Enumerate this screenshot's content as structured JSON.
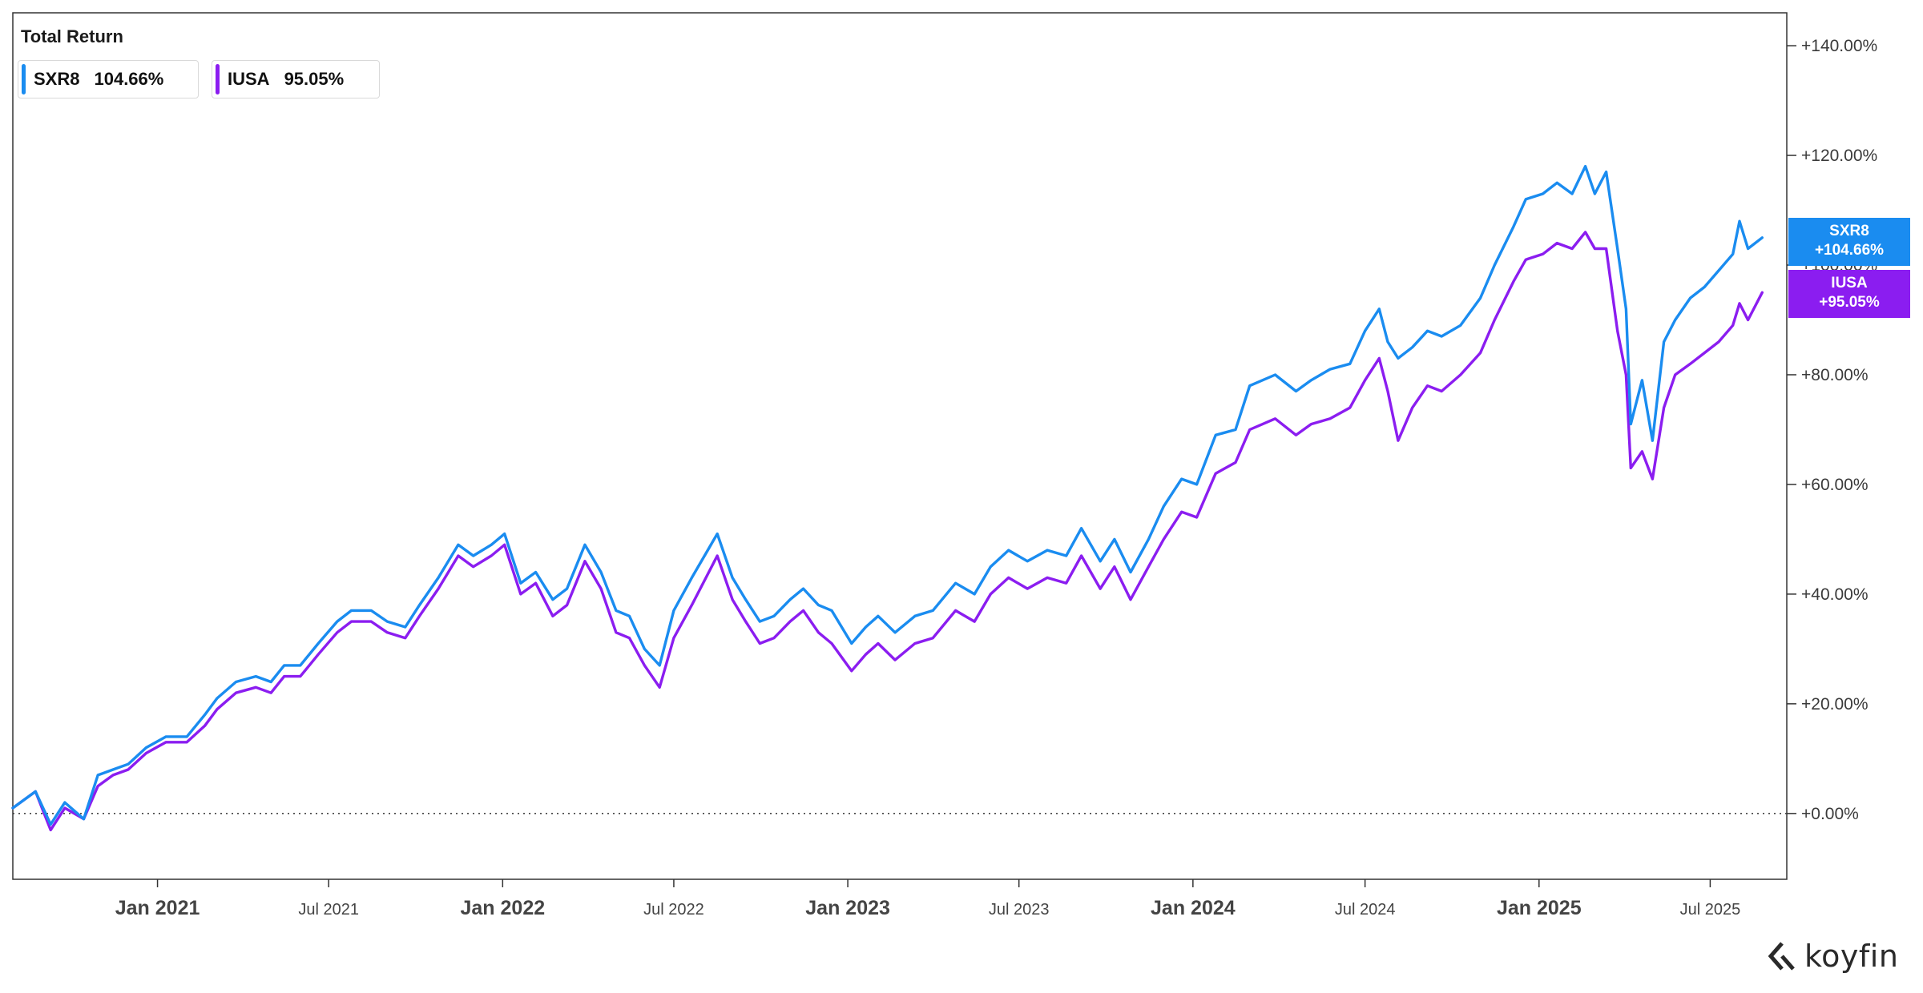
{
  "chart_data": {
    "type": "line",
    "title": "Total Return",
    "ylim": [
      -12,
      146
    ],
    "yticks": [
      0,
      20,
      40,
      60,
      80,
      100,
      120,
      140
    ],
    "ytick_labels": [
      "+0.00%",
      "+20.00%",
      "+40.00%",
      "+60.00%",
      "+80.00%",
      "+100.00%",
      "+120.00%",
      "+140.00%"
    ],
    "xlim": [
      "2020-08-01",
      "2025-09-20"
    ],
    "xticks": [
      {
        "date": "2021-01-01",
        "label": "Jan 2021",
        "major": true
      },
      {
        "date": "2021-07-01",
        "label": "Jul 2021",
        "major": false
      },
      {
        "date": "2022-01-01",
        "label": "Jan 2022",
        "major": true
      },
      {
        "date": "2022-07-01",
        "label": "Jul 2022",
        "major": false
      },
      {
        "date": "2023-01-01",
        "label": "Jan 2023",
        "major": true
      },
      {
        "date": "2023-07-01",
        "label": "Jul 2023",
        "major": false
      },
      {
        "date": "2024-01-01",
        "label": "Jan 2024",
        "major": true
      },
      {
        "date": "2024-07-01",
        "label": "Jul 2024",
        "major": false
      },
      {
        "date": "2025-01-01",
        "label": "Jan 2025",
        "major": true
      },
      {
        "date": "2025-07-01",
        "label": "Jul 2025",
        "major": false
      }
    ],
    "baseline": 0,
    "grid": false,
    "legend": "top-left",
    "series": [
      {
        "name": "SXR8",
        "color": "#1a8cf0",
        "last_value": "104.66%",
        "tag_value": "+104.66%",
        "dates": [
          "2020-08-01",
          "2020-08-25",
          "2020-09-10",
          "2020-09-25",
          "2020-10-15",
          "2020-10-30",
          "2020-11-15",
          "2020-12-01",
          "2020-12-20",
          "2021-01-10",
          "2021-02-01",
          "2021-02-20",
          "2021-03-05",
          "2021-03-25",
          "2021-04-15",
          "2021-05-01",
          "2021-05-15",
          "2021-06-01",
          "2021-06-20",
          "2021-07-10",
          "2021-07-25",
          "2021-08-15",
          "2021-09-01",
          "2021-09-20",
          "2021-10-05",
          "2021-10-25",
          "2021-11-15",
          "2021-12-01",
          "2021-12-20",
          "2022-01-03",
          "2022-01-20",
          "2022-02-05",
          "2022-02-23",
          "2022-03-10",
          "2022-03-29",
          "2022-04-15",
          "2022-05-01",
          "2022-05-15",
          "2022-05-31",
          "2022-06-16",
          "2022-07-01",
          "2022-07-20",
          "2022-08-16",
          "2022-09-01",
          "2022-09-15",
          "2022-09-30",
          "2022-10-15",
          "2022-11-01",
          "2022-11-15",
          "2022-12-01",
          "2022-12-15",
          "2023-01-05",
          "2023-01-20",
          "2023-02-02",
          "2023-02-20",
          "2023-03-13",
          "2023-04-01",
          "2023-04-25",
          "2023-05-15",
          "2023-06-01",
          "2023-06-20",
          "2023-07-10",
          "2023-07-31",
          "2023-08-20",
          "2023-09-05",
          "2023-09-25",
          "2023-10-10",
          "2023-10-27",
          "2023-11-15",
          "2023-12-01",
          "2023-12-20",
          "2024-01-05",
          "2024-01-25",
          "2024-02-15",
          "2024-03-01",
          "2024-03-28",
          "2024-04-19",
          "2024-05-05",
          "2024-05-25",
          "2024-06-15",
          "2024-07-01",
          "2024-07-16",
          "2024-07-25",
          "2024-08-05",
          "2024-08-20",
          "2024-09-05",
          "2024-09-20",
          "2024-10-10",
          "2024-10-31",
          "2024-11-15",
          "2024-12-05",
          "2024-12-18",
          "2025-01-05",
          "2025-01-20",
          "2025-02-05",
          "2025-02-19",
          "2025-03-01",
          "2025-03-13",
          "2025-03-25",
          "2025-04-03",
          "2025-04-08",
          "2025-04-20",
          "2025-05-01",
          "2025-05-13",
          "2025-05-25",
          "2025-06-10",
          "2025-06-25",
          "2025-07-10",
          "2025-07-25",
          "2025-08-01",
          "2025-08-10",
          "2025-08-25"
        ],
        "values": [
          1,
          4,
          -2,
          2,
          -1,
          7,
          8,
          9,
          12,
          14,
          14,
          18,
          21,
          24,
          25,
          24,
          27,
          27,
          31,
          35,
          37,
          37,
          35,
          34,
          38,
          43,
          49,
          47,
          49,
          51,
          42,
          44,
          39,
          41,
          49,
          44,
          37,
          36,
          30,
          27,
          37,
          43,
          51,
          43,
          39,
          35,
          36,
          39,
          41,
          38,
          37,
          31,
          34,
          36,
          33,
          36,
          37,
          42,
          40,
          45,
          48,
          46,
          48,
          47,
          52,
          46,
          50,
          44,
          50,
          56,
          61,
          60,
          69,
          70,
          78,
          80,
          77,
          79,
          81,
          82,
          88,
          92,
          86,
          83,
          85,
          88,
          87,
          89,
          94,
          100,
          107,
          112,
          113,
          115,
          113,
          118,
          113,
          117,
          103,
          92,
          71,
          79,
          68,
          86,
          90,
          94,
          96,
          99,
          102,
          108,
          103,
          105
        ]
      },
      {
        "name": "IUSA",
        "color": "#8b1df0",
        "last_value": "95.05%",
        "tag_value": "+95.05%",
        "dates": [
          "2020-08-01",
          "2020-08-25",
          "2020-09-10",
          "2020-09-25",
          "2020-10-15",
          "2020-10-30",
          "2020-11-15",
          "2020-12-01",
          "2020-12-20",
          "2021-01-10",
          "2021-02-01",
          "2021-02-20",
          "2021-03-05",
          "2021-03-25",
          "2021-04-15",
          "2021-05-01",
          "2021-05-15",
          "2021-06-01",
          "2021-06-20",
          "2021-07-10",
          "2021-07-25",
          "2021-08-15",
          "2021-09-01",
          "2021-09-20",
          "2021-10-05",
          "2021-10-25",
          "2021-11-15",
          "2021-12-01",
          "2021-12-20",
          "2022-01-03",
          "2022-01-20",
          "2022-02-05",
          "2022-02-23",
          "2022-03-10",
          "2022-03-29",
          "2022-04-15",
          "2022-05-01",
          "2022-05-15",
          "2022-05-31",
          "2022-06-16",
          "2022-07-01",
          "2022-07-20",
          "2022-08-16",
          "2022-09-01",
          "2022-09-15",
          "2022-09-30",
          "2022-10-15",
          "2022-11-01",
          "2022-11-15",
          "2022-12-01",
          "2022-12-15",
          "2023-01-05",
          "2023-01-20",
          "2023-02-02",
          "2023-02-20",
          "2023-03-13",
          "2023-04-01",
          "2023-04-25",
          "2023-05-15",
          "2023-06-01",
          "2023-06-20",
          "2023-07-10",
          "2023-07-31",
          "2023-08-20",
          "2023-09-05",
          "2023-09-25",
          "2023-10-10",
          "2023-10-27",
          "2023-11-15",
          "2023-12-01",
          "2023-12-20",
          "2024-01-05",
          "2024-01-25",
          "2024-02-15",
          "2024-03-01",
          "2024-03-28",
          "2024-04-19",
          "2024-05-05",
          "2024-05-25",
          "2024-06-15",
          "2024-07-01",
          "2024-07-16",
          "2024-07-25",
          "2024-08-05",
          "2024-08-20",
          "2024-09-05",
          "2024-09-20",
          "2024-10-10",
          "2024-10-31",
          "2024-11-15",
          "2024-12-05",
          "2024-12-18",
          "2025-01-05",
          "2025-01-20",
          "2025-02-05",
          "2025-02-19",
          "2025-03-01",
          "2025-03-13",
          "2025-03-25",
          "2025-04-03",
          "2025-04-08",
          "2025-04-20",
          "2025-05-01",
          "2025-05-13",
          "2025-05-25",
          "2025-06-10",
          "2025-06-25",
          "2025-07-10",
          "2025-07-25",
          "2025-08-01",
          "2025-08-10",
          "2025-08-25"
        ],
        "values": [
          1,
          4,
          -3,
          1,
          -1,
          5,
          7,
          8,
          11,
          13,
          13,
          16,
          19,
          22,
          23,
          22,
          25,
          25,
          29,
          33,
          35,
          35,
          33,
          32,
          36,
          41,
          47,
          45,
          47,
          49,
          40,
          42,
          36,
          38,
          46,
          41,
          33,
          32,
          27,
          23,
          32,
          38,
          47,
          39,
          35,
          31,
          32,
          35,
          37,
          33,
          31,
          26,
          29,
          31,
          28,
          31,
          32,
          37,
          35,
          40,
          43,
          41,
          43,
          42,
          47,
          41,
          45,
          39,
          45,
          50,
          55,
          54,
          62,
          64,
          70,
          72,
          69,
          71,
          72,
          74,
          79,
          83,
          77,
          68,
          74,
          78,
          77,
          80,
          84,
          90,
          97,
          101,
          102,
          104,
          103,
          106,
          103,
          103,
          88,
          80,
          63,
          66,
          61,
          74,
          80,
          82,
          84,
          86,
          89,
          93,
          90,
          95
        ]
      }
    ]
  },
  "brand": {
    "name": "koyfin",
    "icon": "koyfin-logo-icon"
  }
}
